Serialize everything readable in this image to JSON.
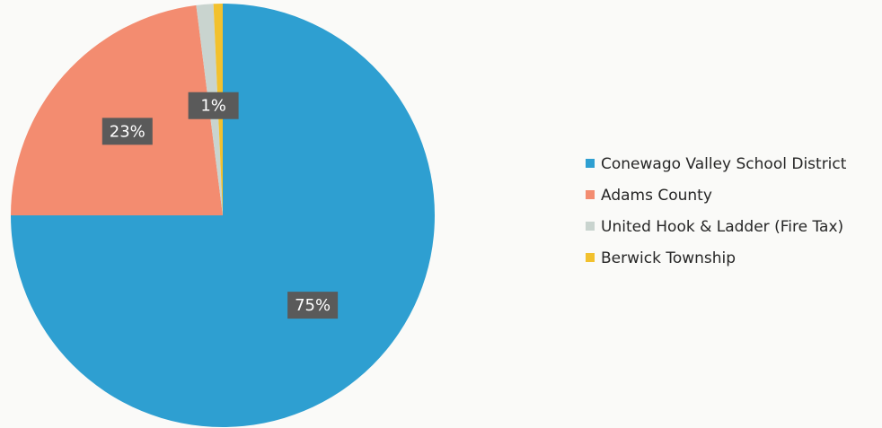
{
  "chart_data": {
    "type": "pie",
    "title": "",
    "start_angle_deg": 0,
    "direction": "clockwise",
    "legend_position": "right",
    "slices": [
      {
        "name": "Conewago Valley School District",
        "value": 75,
        "label": "75%",
        "color": "#2e9fd1"
      },
      {
        "name": "Adams County",
        "value": 23,
        "label": "23%",
        "color": "#f38c70"
      },
      {
        "name": "United Hook & Ladder (Fire Tax)",
        "value": 1.3,
        "label": "1%",
        "color": "#c9d4cf"
      },
      {
        "name": "Berwick Township",
        "value": 0.7,
        "label": "",
        "color": "#f2c12e"
      }
    ]
  }
}
